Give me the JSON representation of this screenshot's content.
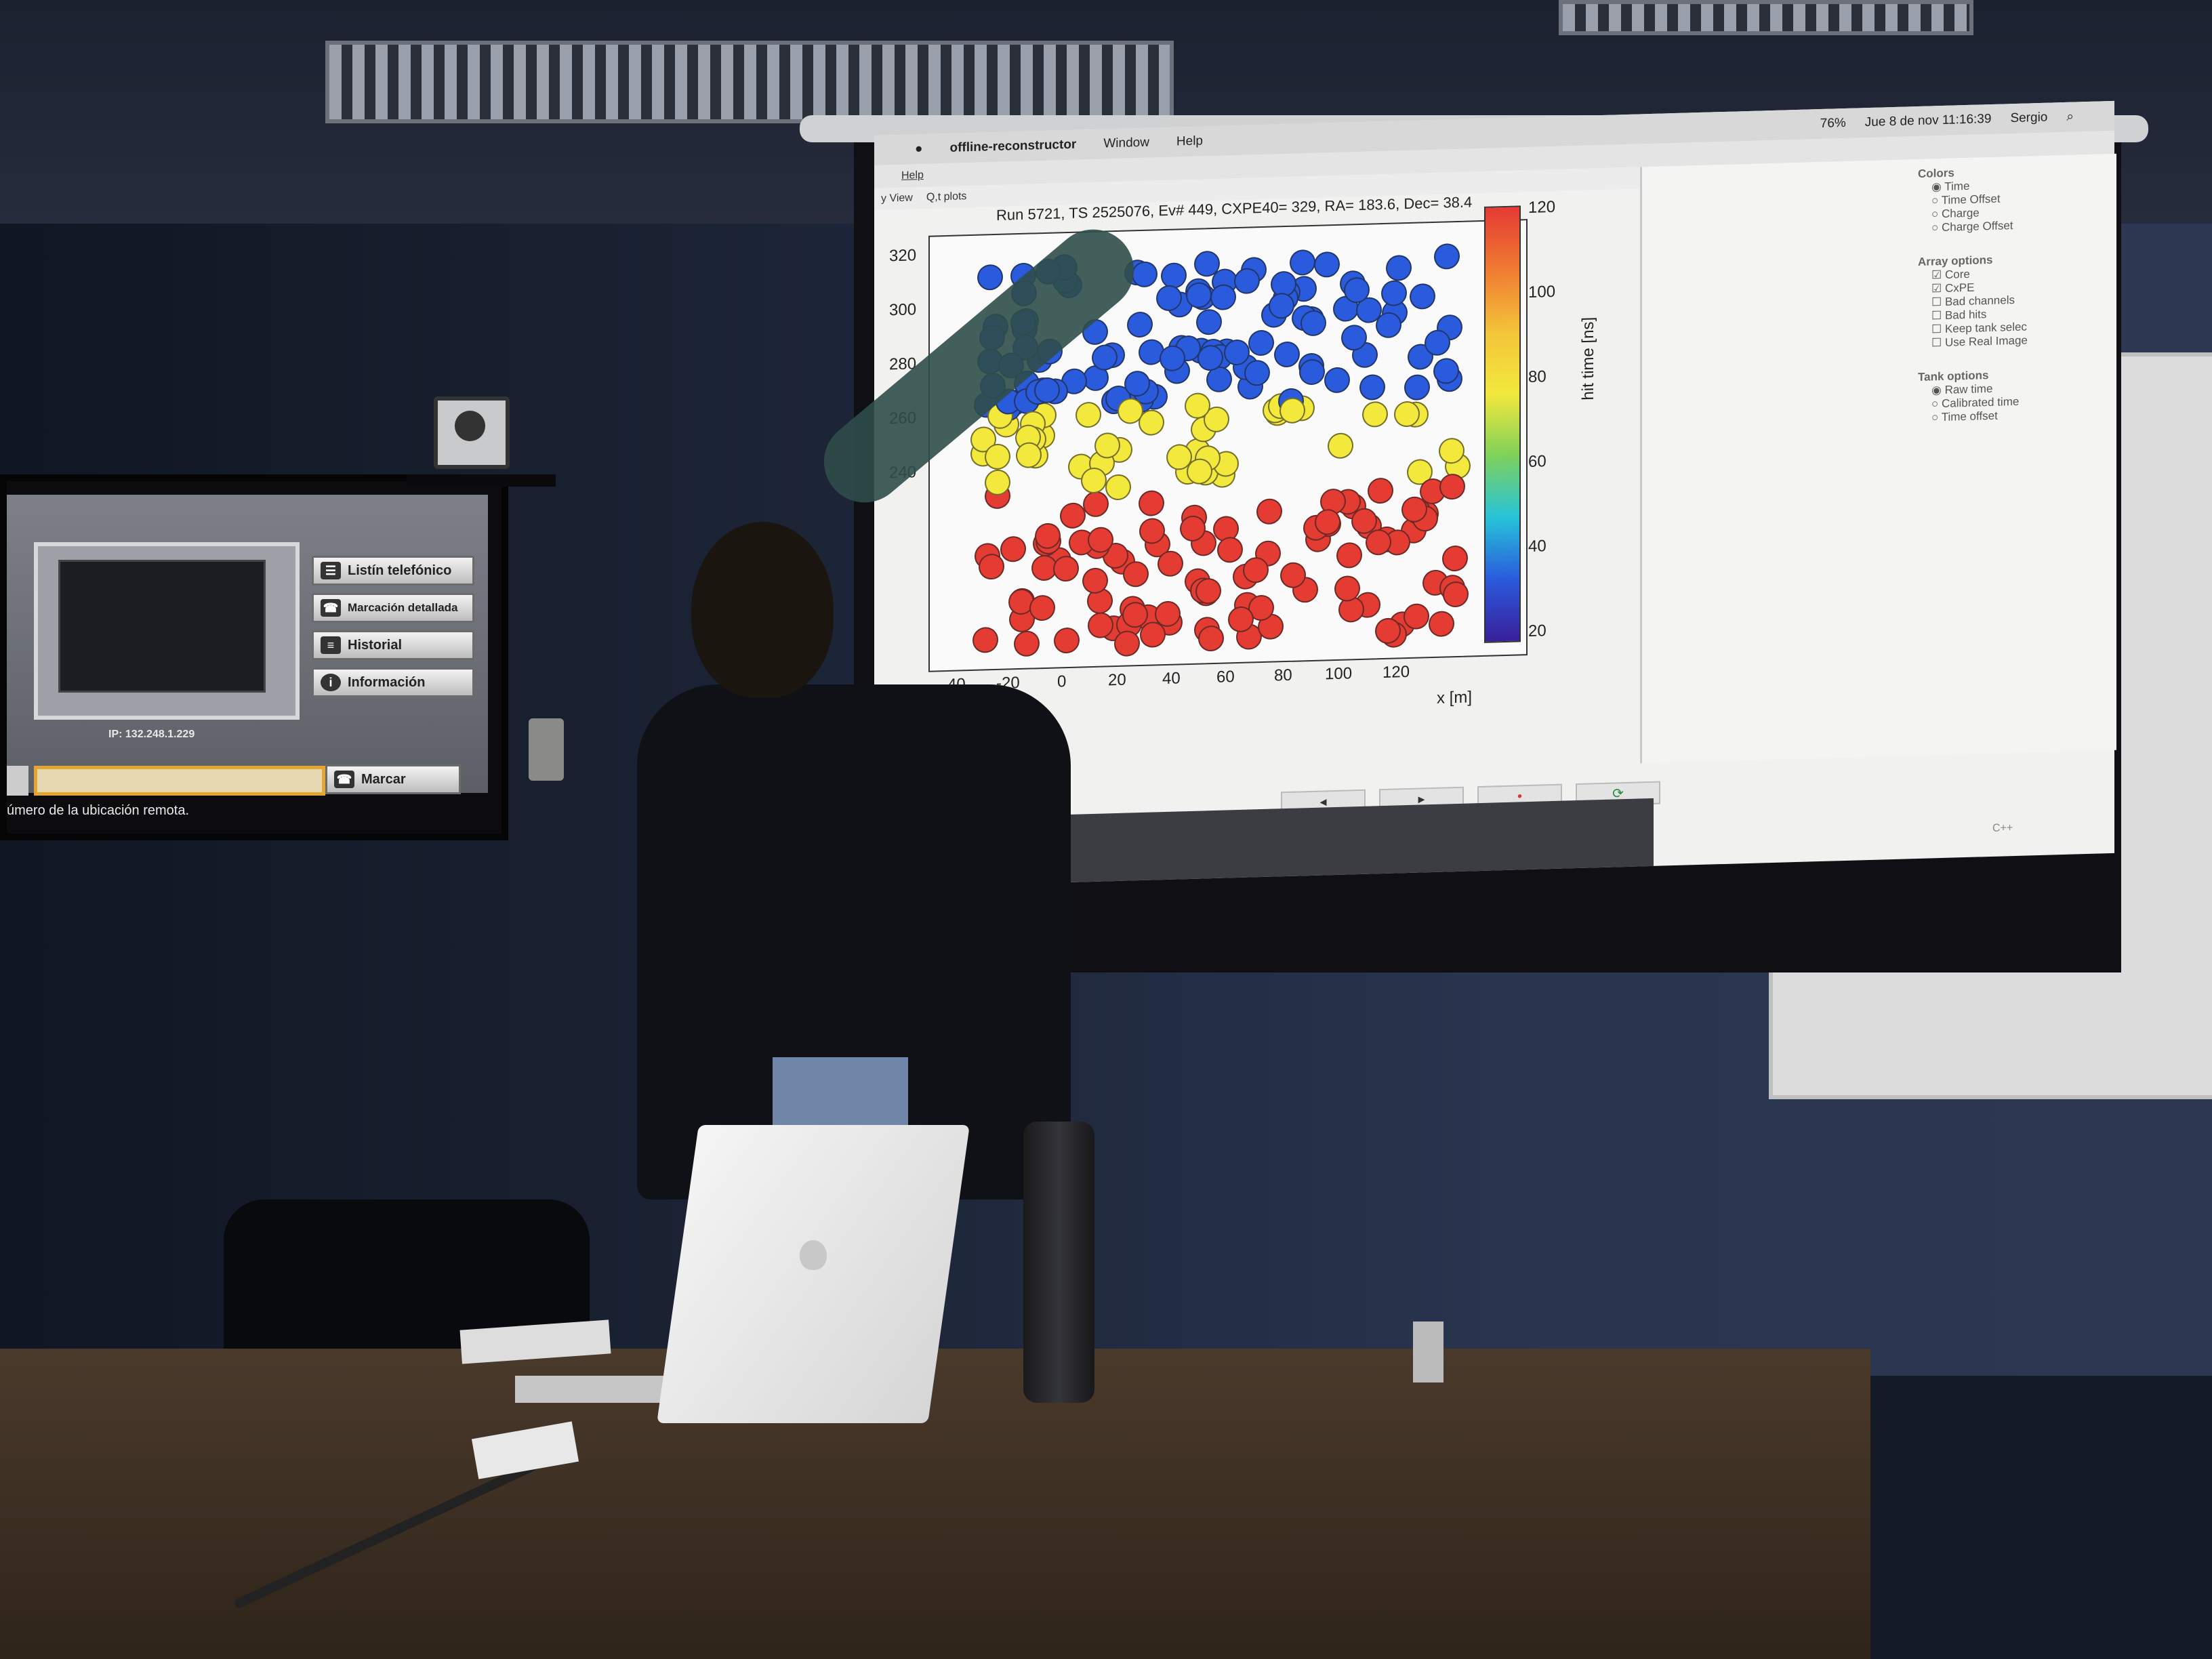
{
  "app": {
    "menu_bar": {
      "app_name": "offline-reconstructor",
      "items": [
        "Window",
        "Help"
      ],
      "status": {
        "battery": "76%",
        "datetime": "Jue 8 de nov  11:16:39",
        "user": "Sergio"
      }
    },
    "app_menu": "Help",
    "toolbar": [
      "y View",
      "Q,t plots"
    ],
    "plot": {
      "title": "Run 5721, TS 2525076, Ev# 449, CXPE40=  329, RA= 183.6, Dec= 38.4",
      "xlabel": "x [m]",
      "colorbar_label": "hit time [ns]",
      "y_ticks": [
        "320",
        "300",
        "280",
        "260",
        "240"
      ],
      "x_ticks": [
        "-40",
        "-20",
        "0",
        "20",
        "40",
        "60",
        "80",
        "100",
        "120"
      ],
      "colorbar_ticks": [
        "120",
        "100",
        "80",
        "60",
        "40",
        "20"
      ]
    },
    "options": {
      "colors_title": "Colors",
      "colors": [
        "Time",
        "Time Offset",
        "Charge",
        "Charge Offset"
      ],
      "array_title": "Array options",
      "array": [
        "Core",
        "CxPE",
        "Bad channels",
        "Bad hits",
        "Keep tank selec",
        "Use Real Image"
      ],
      "tank_title": "Tank options",
      "tank": [
        "Raw time",
        "Calibrated time",
        "Time offset"
      ]
    },
    "nav": [
      "◂",
      "▸",
      "•",
      "⟳"
    ],
    "console_lang": "C++"
  },
  "tv": {
    "buttons": [
      "Listín telefónico",
      "Marcación detallada",
      "Historial",
      "Información"
    ],
    "ip": "IP: 132.248.1.229",
    "dial_button": "Marcar",
    "hint": "úmero de la ubicación remota."
  },
  "colors": {
    "hot": "#e43b33",
    "mid": "#f3e83c",
    "cool": "#2a5bdc"
  }
}
